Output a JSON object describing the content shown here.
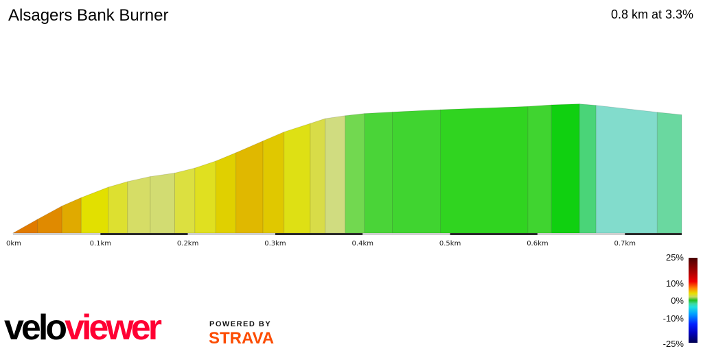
{
  "header": {
    "title": "Alsagers Bank Burner",
    "summary": "0.8 km at 3.3%"
  },
  "chart_data": {
    "type": "area",
    "title": "Alsagers Bank Burner",
    "xlabel": "",
    "ylabel": "",
    "x_unit": "km",
    "xlim": [
      0,
      0.765
    ],
    "x_ticks": [
      {
        "value": 0,
        "label": "0km"
      },
      {
        "value": 0.1,
        "label": "0.1km"
      },
      {
        "value": 0.2,
        "label": "0.2km"
      },
      {
        "value": 0.3,
        "label": "0.3km"
      },
      {
        "value": 0.4,
        "label": "0.4km"
      },
      {
        "value": 0.5,
        "label": "0.5km"
      },
      {
        "value": 0.6,
        "label": "0.6km"
      },
      {
        "value": 0.7,
        "label": "0.7km"
      }
    ],
    "segments": [
      {
        "start_km": 0.0,
        "end_km": 0.028,
        "gradient_pct": 10.5,
        "color": "#e07a00"
      },
      {
        "start_km": 0.028,
        "end_km": 0.056,
        "gradient_pct": 10.1,
        "color": "#e08a00"
      },
      {
        "start_km": 0.056,
        "end_km": 0.078,
        "gradient_pct": 8.1,
        "color": "#e0aa00"
      },
      {
        "start_km": 0.078,
        "end_km": 0.109,
        "gradient_pct": 7.2,
        "color": "#e2e000"
      },
      {
        "start_km": 0.109,
        "end_km": 0.131,
        "gradient_pct": 5.4,
        "color": "#dde030"
      },
      {
        "start_km": 0.131,
        "end_km": 0.157,
        "gradient_pct": 4.1,
        "color": "#d6dd66"
      },
      {
        "start_km": 0.157,
        "end_km": 0.185,
        "gradient_pct": 2.7,
        "color": "#d2dc72"
      },
      {
        "start_km": 0.185,
        "end_km": 0.208,
        "gradient_pct": 4.6,
        "color": "#dce040"
      },
      {
        "start_km": 0.208,
        "end_km": 0.232,
        "gradient_pct": 6.2,
        "color": "#e0e020"
      },
      {
        "start_km": 0.232,
        "end_km": 0.255,
        "gradient_pct": 7.7,
        "color": "#e0d000"
      },
      {
        "start_km": 0.255,
        "end_km": 0.286,
        "gradient_pct": 8.1,
        "color": "#e0b800"
      },
      {
        "start_km": 0.286,
        "end_km": 0.31,
        "gradient_pct": 8.0,
        "color": "#e0c800"
      },
      {
        "start_km": 0.31,
        "end_km": 0.34,
        "gradient_pct": 6.0,
        "color": "#dee014"
      },
      {
        "start_km": 0.34,
        "end_km": 0.357,
        "gradient_pct": 6.1,
        "color": "#d8dc48"
      },
      {
        "start_km": 0.357,
        "end_km": 0.38,
        "gradient_pct": 2.7,
        "color": "#d0dc80"
      },
      {
        "start_km": 0.38,
        "end_km": 0.402,
        "gradient_pct": 2.1,
        "color": "#72d850"
      },
      {
        "start_km": 0.402,
        "end_km": 0.434,
        "gradient_pct": 1.0,
        "color": "#4ad438"
      },
      {
        "start_km": 0.434,
        "end_km": 0.489,
        "gradient_pct": 0.9,
        "color": "#40d430"
      },
      {
        "start_km": 0.489,
        "end_km": 0.589,
        "gradient_pct": 0.7,
        "color": "#30d420"
      },
      {
        "start_km": 0.589,
        "end_km": 0.616,
        "gradient_pct": 1.2,
        "color": "#40d430"
      },
      {
        "start_km": 0.616,
        "end_km": 0.648,
        "gradient_pct": 0.6,
        "color": "#10d010"
      },
      {
        "start_km": 0.648,
        "end_km": 0.667,
        "gradient_pct": -1.5,
        "color": "#4ad478"
      },
      {
        "start_km": 0.667,
        "end_km": 0.737,
        "gradient_pct": -2.1,
        "color": "#82dccc"
      },
      {
        "start_km": 0.737,
        "end_km": 0.765,
        "gradient_pct": -1.9,
        "color": "#6ad8a0"
      }
    ],
    "legend": {
      "type": "gradient-colorbar",
      "placement": "bottom-right",
      "labels": [
        "25%",
        "10%",
        "0%",
        "-10%",
        "-25%"
      ]
    }
  },
  "branding": {
    "logo_velo": "velo",
    "logo_viewer": "viewer",
    "powered_by": "POWERED BY",
    "strava": "STRAVA",
    "velo_color": "#000000",
    "viewer_color": "#ff0033",
    "strava_color": "#fc4c02"
  }
}
